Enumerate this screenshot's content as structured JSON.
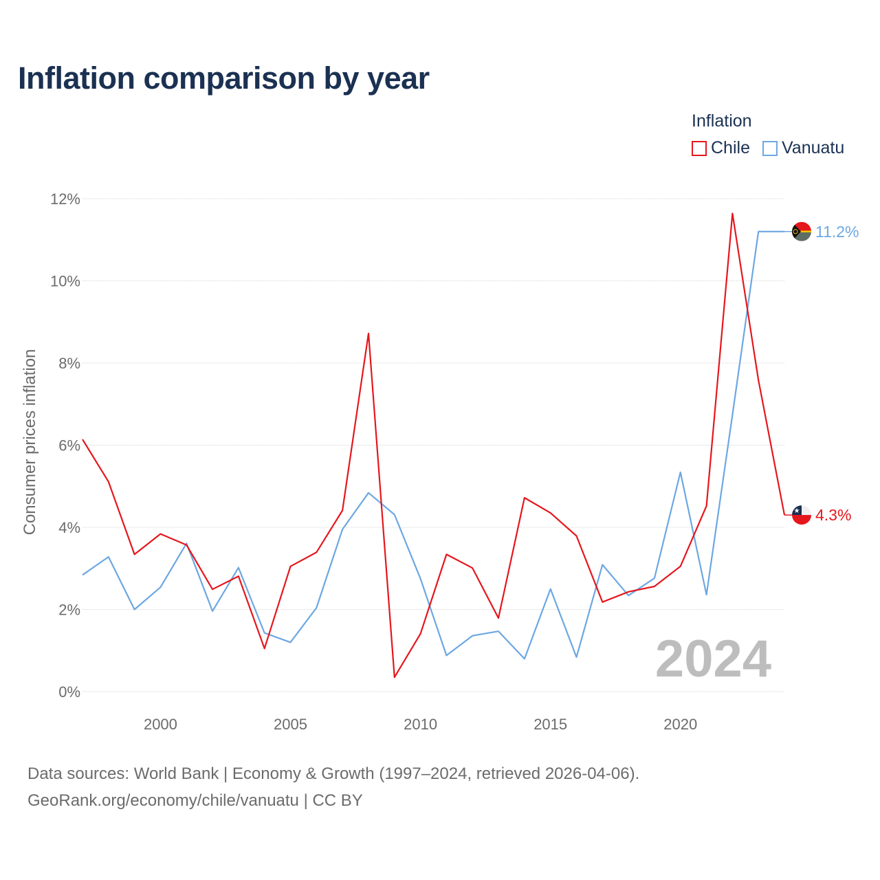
{
  "title": "Inflation comparison by year",
  "legend": {
    "title": "Inflation",
    "items": [
      {
        "label": "Chile",
        "color": "#e5161c"
      },
      {
        "label": "Vanuatu",
        "color": "#6ca7e2"
      }
    ]
  },
  "watermark_year": "2024",
  "footer": {
    "line1": "Data sources: World Bank | Economy & Growth (1997–2024, retrieved 2026-04-06).",
    "line2": "GeoRank.org/economy/chile/vanuatu | CC BY"
  },
  "chart_data": {
    "type": "line",
    "title": "Inflation comparison by year",
    "xlabel": "",
    "ylabel": "Consumer prices inflation",
    "xlim": [
      1997,
      2024
    ],
    "ylim": [
      0,
      12
    ],
    "x_ticks": [
      2000,
      2005,
      2010,
      2015,
      2020
    ],
    "y_ticks": [
      0,
      2,
      4,
      6,
      8,
      10,
      12
    ],
    "y_tick_labels": [
      "0%",
      "2%",
      "4%",
      "6%",
      "8%",
      "10%",
      "12%"
    ],
    "x": [
      1997,
      1998,
      1999,
      2000,
      2001,
      2002,
      2003,
      2004,
      2005,
      2006,
      2007,
      2008,
      2009,
      2010,
      2011,
      2012,
      2013,
      2014,
      2015,
      2016,
      2017,
      2018,
      2019,
      2020,
      2021,
      2022,
      2023,
      2024
    ],
    "series": [
      {
        "name": "Chile",
        "color": "#e5161c",
        "values": [
          6.14,
          5.11,
          3.34,
          3.84,
          3.57,
          2.49,
          2.81,
          1.05,
          3.05,
          3.39,
          4.41,
          8.72,
          0.35,
          1.41,
          3.34,
          3.01,
          1.79,
          4.72,
          4.35,
          3.79,
          2.18,
          2.43,
          2.56,
          3.05,
          4.52,
          11.64,
          7.58,
          4.3
        ],
        "end_label": "4.3%",
        "end_value": 4.3
      },
      {
        "name": "Vanuatu",
        "color": "#6ca7e2",
        "values": [
          2.84,
          3.28,
          2.0,
          2.54,
          3.61,
          1.96,
          3.02,
          1.43,
          1.2,
          2.04,
          3.95,
          4.84,
          4.31,
          2.75,
          0.88,
          1.36,
          1.47,
          0.8,
          2.5,
          0.84,
          3.09,
          2.34,
          2.76,
          5.34,
          2.36,
          6.74,
          11.2,
          11.2
        ],
        "end_label": "11.2%",
        "end_value": 11.2
      }
    ]
  }
}
